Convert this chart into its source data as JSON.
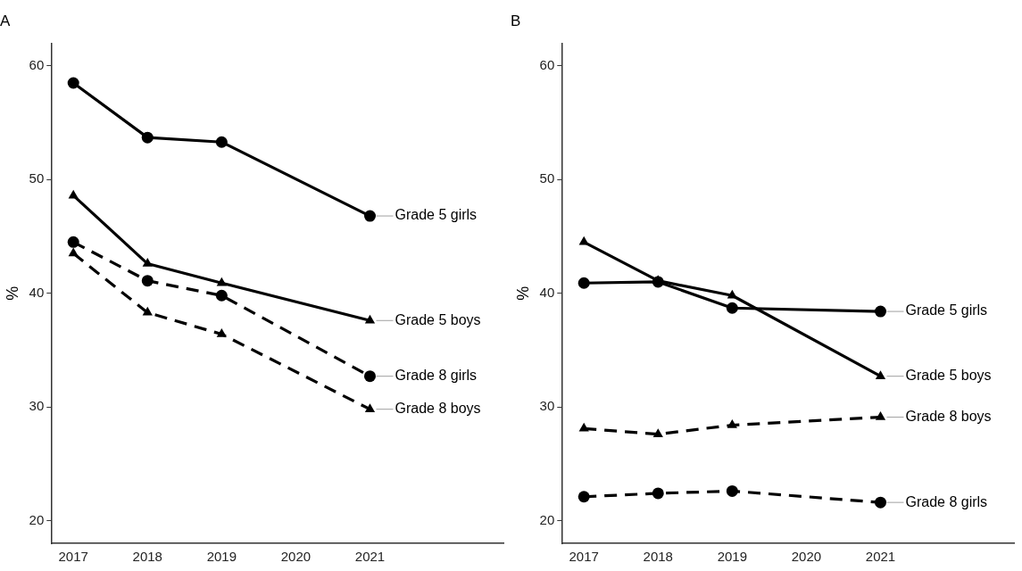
{
  "chart_data": [
    {
      "type": "line",
      "title": "A",
      "ylabel": "%",
      "x": [
        2017,
        2018,
        2019,
        2021
      ],
      "xlim": [
        2016.7,
        2022.8
      ],
      "xticks": [
        2017,
        2018,
        2019,
        2020,
        2021
      ],
      "ylim": [
        18,
        62
      ],
      "yticks": [
        20,
        30,
        40,
        50,
        60
      ],
      "grid": false,
      "legend": false,
      "series": [
        {
          "name": "Grade 5 girls",
          "color": "#000000",
          "marker": "circle",
          "line_style": "solid",
          "values": [
            58.5,
            53.7,
            53.3,
            46.8
          ]
        },
        {
          "name": "Grade 5 boys",
          "color": "#000000",
          "marker": "triangle",
          "line_style": "solid",
          "values": [
            48.6,
            42.6,
            40.9,
            37.6
          ]
        },
        {
          "name": "Grade 8 girls",
          "color": "#000000",
          "marker": "circle",
          "line_style": "dashed",
          "values": [
            44.5,
            41.1,
            39.8,
            32.7
          ]
        },
        {
          "name": "Grade 8 boys",
          "color": "#000000",
          "marker": "triangle",
          "line_style": "dashed",
          "values": [
            43.5,
            38.3,
            36.4,
            29.8
          ]
        }
      ]
    },
    {
      "type": "line",
      "title": "B",
      "ylabel": "%",
      "x": [
        2017,
        2018,
        2019,
        2021
      ],
      "xlim": [
        2016.7,
        2022.8
      ],
      "xticks": [
        2017,
        2018,
        2019,
        2020,
        2021
      ],
      "ylim": [
        18,
        62
      ],
      "yticks": [
        20,
        30,
        40,
        50,
        60
      ],
      "grid": false,
      "legend": false,
      "series": [
        {
          "name": "Grade 5 girls",
          "color": "#000000",
          "marker": "circle",
          "line_style": "solid",
          "values": [
            40.9,
            41.0,
            38.7,
            38.4
          ]
        },
        {
          "name": "Grade 5 boys",
          "color": "#000000",
          "marker": "triangle",
          "line_style": "solid",
          "values": [
            44.5,
            41.1,
            39.8,
            32.7
          ]
        },
        {
          "name": "Grade 8 boys",
          "color": "#000000",
          "marker": "triangle",
          "line_style": "dashed",
          "values": [
            28.1,
            27.6,
            28.4,
            29.1
          ]
        },
        {
          "name": "Grade 8 girls",
          "color": "#000000",
          "marker": "circle",
          "line_style": "dashed",
          "values": [
            22.1,
            22.4,
            22.6,
            21.6
          ]
        }
      ]
    }
  ]
}
